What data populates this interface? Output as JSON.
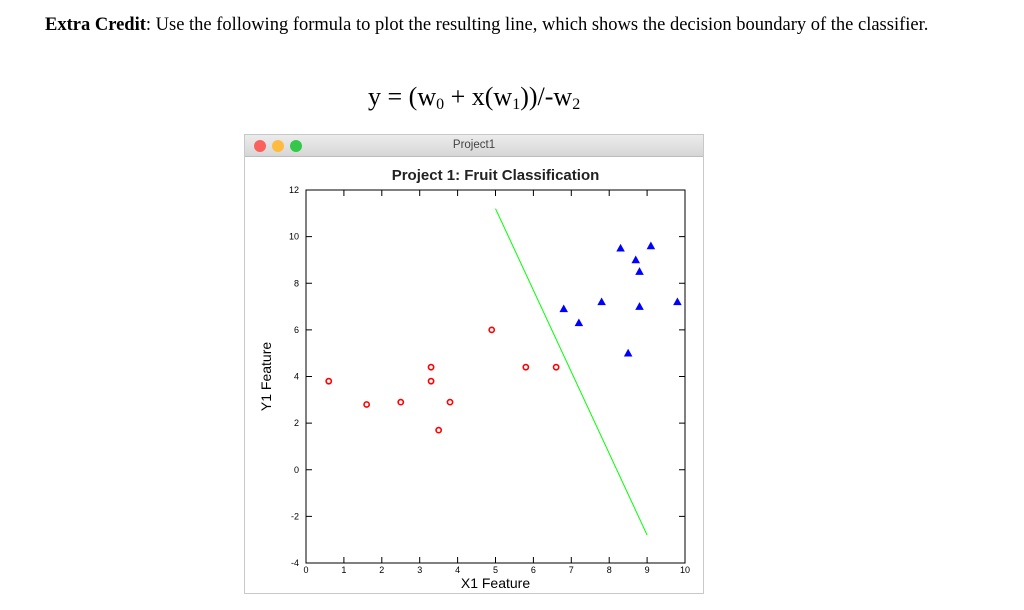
{
  "instruction": {
    "bold_label": "Extra Credit",
    "text": ": Use the following formula to plot the resulting line, which shows the decision boundary of the classifier."
  },
  "formula": {
    "lhs": "y = (w",
    "sub0": "0",
    "mid": " + x(w",
    "sub1": "1",
    "end": "))/-w",
    "sub2": "2"
  },
  "window": {
    "title": "Project1",
    "traffic_light_colors": [
      "#fc605c",
      "#fdbc40",
      "#34c84a"
    ]
  },
  "chart_data": {
    "type": "scatter",
    "title": "Project 1: Fruit Classification",
    "xlabel": "X1 Feature",
    "ylabel": "Y1 Feature",
    "xlim": [
      0,
      10
    ],
    "ylim": [
      -4,
      12
    ],
    "xticks": [
      0,
      1,
      2,
      3,
      4,
      5,
      6,
      7,
      8,
      9,
      10
    ],
    "yticks": [
      -4,
      -2,
      0,
      2,
      4,
      6,
      8,
      10,
      12
    ],
    "grid": false,
    "series": [
      {
        "marker": "circle",
        "color": "#ff0000",
        "points": [
          [
            0.6,
            3.8
          ],
          [
            1.6,
            2.8
          ],
          [
            2.5,
            2.9
          ],
          [
            3.3,
            4.4
          ],
          [
            3.3,
            3.8
          ],
          [
            3.5,
            1.7
          ],
          [
            3.8,
            2.9
          ],
          [
            4.9,
            6.0
          ],
          [
            5.8,
            4.4
          ],
          [
            6.6,
            4.4
          ]
        ]
      },
      {
        "marker": "triangle",
        "color": "#0000ff",
        "points": [
          [
            6.8,
            6.9
          ],
          [
            7.2,
            6.3
          ],
          [
            7.8,
            7.2
          ],
          [
            8.3,
            9.5
          ],
          [
            8.5,
            5.0
          ],
          [
            8.7,
            9.0
          ],
          [
            8.8,
            8.5
          ],
          [
            8.8,
            7.0
          ],
          [
            9.1,
            9.6
          ],
          [
            9.8,
            7.2
          ]
        ]
      }
    ],
    "line": {
      "color": "#00ff00",
      "x1": 5.0,
      "y1": 11.2,
      "x2": 9.0,
      "y2": -2.8
    }
  }
}
